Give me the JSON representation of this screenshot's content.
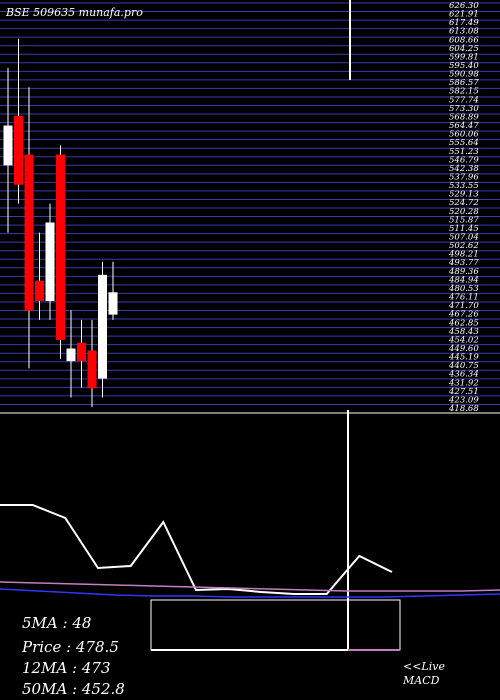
{
  "chart_data": [
    {
      "type": "candlestick",
      "title": "BSE 509635 munafa.pro",
      "ylim": [
        417,
        630
      ],
      "y_tick_labels": [
        "626.30",
        "621.91",
        "617.49",
        "613.08",
        "608.66",
        "604.25",
        "599.81",
        "595.40",
        "590.98",
        "586.57",
        "582.15",
        "577.74",
        "573.30",
        "568.89",
        "564.47",
        "560.06",
        "555.64",
        "551.23",
        "546.79",
        "542.38",
        "537.96",
        "533.55",
        "529.13",
        "524.72",
        "520.28",
        "515.87",
        "511.45",
        "507.04",
        "502.62",
        "498.21",
        "493.77",
        "489.36",
        "484.94",
        "480.53",
        "476.11",
        "471.70",
        "467.26",
        "462.85",
        "458.43",
        "454.02",
        "449.60",
        "445.19",
        "440.75",
        "436.34",
        "431.92",
        "427.51",
        "423.09",
        "418.68"
      ],
      "candles": [
        {
          "open": 545,
          "high": 595,
          "low": 510,
          "close": 565,
          "color": "#ffffff"
        },
        {
          "open": 570,
          "high": 610,
          "low": 525,
          "close": 535,
          "color": "#ff0000"
        },
        {
          "open": 550,
          "high": 585,
          "low": 440,
          "close": 470,
          "color": "#ff0000"
        },
        {
          "open": 485,
          "high": 510,
          "low": 465,
          "close": 475,
          "color": "#ff0000"
        },
        {
          "open": 475,
          "high": 525,
          "low": 465,
          "close": 515,
          "color": "#ffffff"
        },
        {
          "open": 550,
          "high": 555,
          "low": 445,
          "close": 455,
          "color": "#ff0000"
        },
        {
          "open": 450,
          "high": 470,
          "low": 425,
          "close": 444,
          "color": "#ffffff"
        },
        {
          "open": 453,
          "high": 465,
          "low": 430,
          "close": 444,
          "color": "#ff0000"
        },
        {
          "open": 449,
          "high": 465,
          "low": 420,
          "close": 430,
          "color": "#ff0000"
        },
        {
          "open": 435,
          "high": 495,
          "low": 425,
          "close": 488,
          "color": "#ffffff"
        },
        {
          "open": 468,
          "high": 495,
          "low": 465,
          "close": 479,
          "color": "#ffffff"
        }
      ]
    },
    {
      "type": "line",
      "title": "MACD",
      "series": [
        {
          "values": [
            0.95,
            0.95,
            0.82,
            0.32,
            0.34,
            0.78,
            0.1,
            0.11,
            0.08,
            0.06,
            0.06,
            0.44,
            0.28
          ],
          "color": "#ffffff"
        },
        {
          "values": [
            0.18,
            0.17,
            0.16,
            0.15,
            0.14,
            0.13,
            0.12,
            0.11,
            0.1,
            0.09,
            0.09,
            0.09,
            0.09,
            0.1
          ],
          "color": "#c080c0"
        },
        {
          "values": [
            0.11,
            0.09,
            0.07,
            0.05,
            0.04,
            0.04,
            0.03,
            0.03,
            0.03,
            0.03,
            0.03,
            0.04,
            0.05,
            0.06
          ],
          "color": "#3333ff"
        }
      ]
    }
  ],
  "stats": {
    "ma5": "5MA : 48",
    "price": "Price  : 478.5",
    "ma12": "12MA : 473",
    "ma50": "50MA : 452.8"
  },
  "live_label": "<<Live",
  "macd_label": "MACD"
}
